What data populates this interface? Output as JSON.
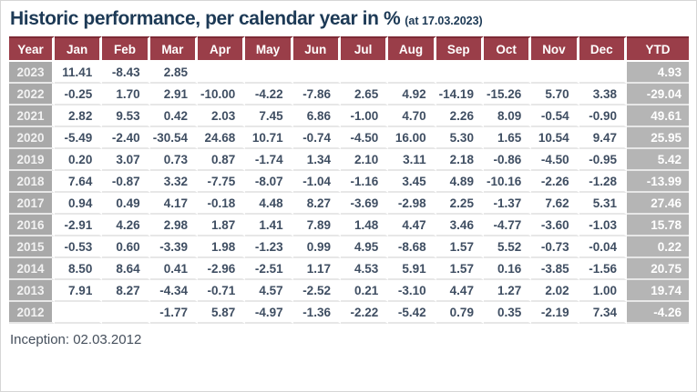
{
  "title": {
    "text": "Historic performance, per calendar year in %",
    "date_note": "(at 17.03.2023)"
  },
  "footer": {
    "inception_label": "Inception: 02.03.2012"
  },
  "colors": {
    "title_color": "#1d3a56",
    "header_bg": "#9a3e49",
    "header_top_line": "#7d2a35",
    "year_col_bg": "#a9a9a9",
    "ytd_col_bg": "#b5b5b5",
    "value_text": "#3f4e62"
  },
  "chart_data": {
    "type": "table",
    "title": "Historic performance, per calendar year in %",
    "subtitle": "(at 17.03.2023)",
    "footnote": "Inception: 02.03.2012",
    "columns": [
      "Year",
      "Jan",
      "Feb",
      "Mar",
      "Apr",
      "May",
      "Jun",
      "Jul",
      "Aug",
      "Sep",
      "Oct",
      "Nov",
      "Dec",
      "YTD"
    ],
    "rows": [
      {
        "year": "2023",
        "values": [
          "11.41",
          "-8.43",
          "2.85",
          "",
          "",
          "",
          "",
          "",
          "",
          "",
          "",
          ""
        ],
        "ytd": "4.93"
      },
      {
        "year": "2022",
        "values": [
          "-0.25",
          "1.70",
          "2.91",
          "-10.00",
          "-4.22",
          "-7.86",
          "2.65",
          "4.92",
          "-14.19",
          "-15.26",
          "5.70",
          "3.38"
        ],
        "ytd": "-29.04"
      },
      {
        "year": "2021",
        "values": [
          "2.82",
          "9.53",
          "0.42",
          "2.03",
          "7.45",
          "6.86",
          "-1.00",
          "4.70",
          "2.26",
          "8.09",
          "-0.54",
          "-0.90"
        ],
        "ytd": "49.61"
      },
      {
        "year": "2020",
        "values": [
          "-5.49",
          "-2.40",
          "-30.54",
          "24.68",
          "10.71",
          "-0.74",
          "-4.50",
          "16.00",
          "5.30",
          "1.65",
          "10.54",
          "9.47"
        ],
        "ytd": "25.95"
      },
      {
        "year": "2019",
        "values": [
          "0.20",
          "3.07",
          "0.73",
          "0.87",
          "-1.74",
          "1.34",
          "2.10",
          "3.11",
          "2.18",
          "-0.86",
          "-4.50",
          "-0.95"
        ],
        "ytd": "5.42"
      },
      {
        "year": "2018",
        "values": [
          "7.64",
          "-0.87",
          "3.32",
          "-7.75",
          "-8.07",
          "-1.04",
          "-1.16",
          "3.45",
          "4.89",
          "-10.16",
          "-2.26",
          "-1.28"
        ],
        "ytd": "-13.99"
      },
      {
        "year": "2017",
        "values": [
          "0.94",
          "0.49",
          "4.17",
          "-0.18",
          "4.48",
          "8.27",
          "-3.69",
          "-2.98",
          "2.25",
          "-1.37",
          "7.62",
          "5.31"
        ],
        "ytd": "27.46"
      },
      {
        "year": "2016",
        "values": [
          "-2.91",
          "4.26",
          "2.98",
          "1.87",
          "1.41",
          "7.89",
          "1.48",
          "4.47",
          "3.46",
          "-4.77",
          "-3.60",
          "-1.03"
        ],
        "ytd": "15.78"
      },
      {
        "year": "2015",
        "values": [
          "-0.53",
          "0.60",
          "-3.39",
          "1.98",
          "-1.23",
          "0.99",
          "4.95",
          "-8.68",
          "1.57",
          "5.52",
          "-0.73",
          "-0.04"
        ],
        "ytd": "0.22"
      },
      {
        "year": "2014",
        "values": [
          "8.50",
          "8.64",
          "0.41",
          "-2.96",
          "-2.51",
          "1.17",
          "4.53",
          "5.91",
          "1.57",
          "0.16",
          "-3.85",
          "-1.56"
        ],
        "ytd": "20.75"
      },
      {
        "year": "2013",
        "values": [
          "7.91",
          "8.27",
          "-4.34",
          "-0.71",
          "4.57",
          "-2.52",
          "0.21",
          "-3.10",
          "4.47",
          "1.27",
          "2.02",
          "1.00"
        ],
        "ytd": "19.74"
      },
      {
        "year": "2012",
        "values": [
          "",
          "",
          "-1.77",
          "5.87",
          "-4.97",
          "-1.36",
          "-2.22",
          "-5.42",
          "0.79",
          "0.35",
          "-2.19",
          "7.34"
        ],
        "ytd": "-4.26"
      }
    ]
  }
}
